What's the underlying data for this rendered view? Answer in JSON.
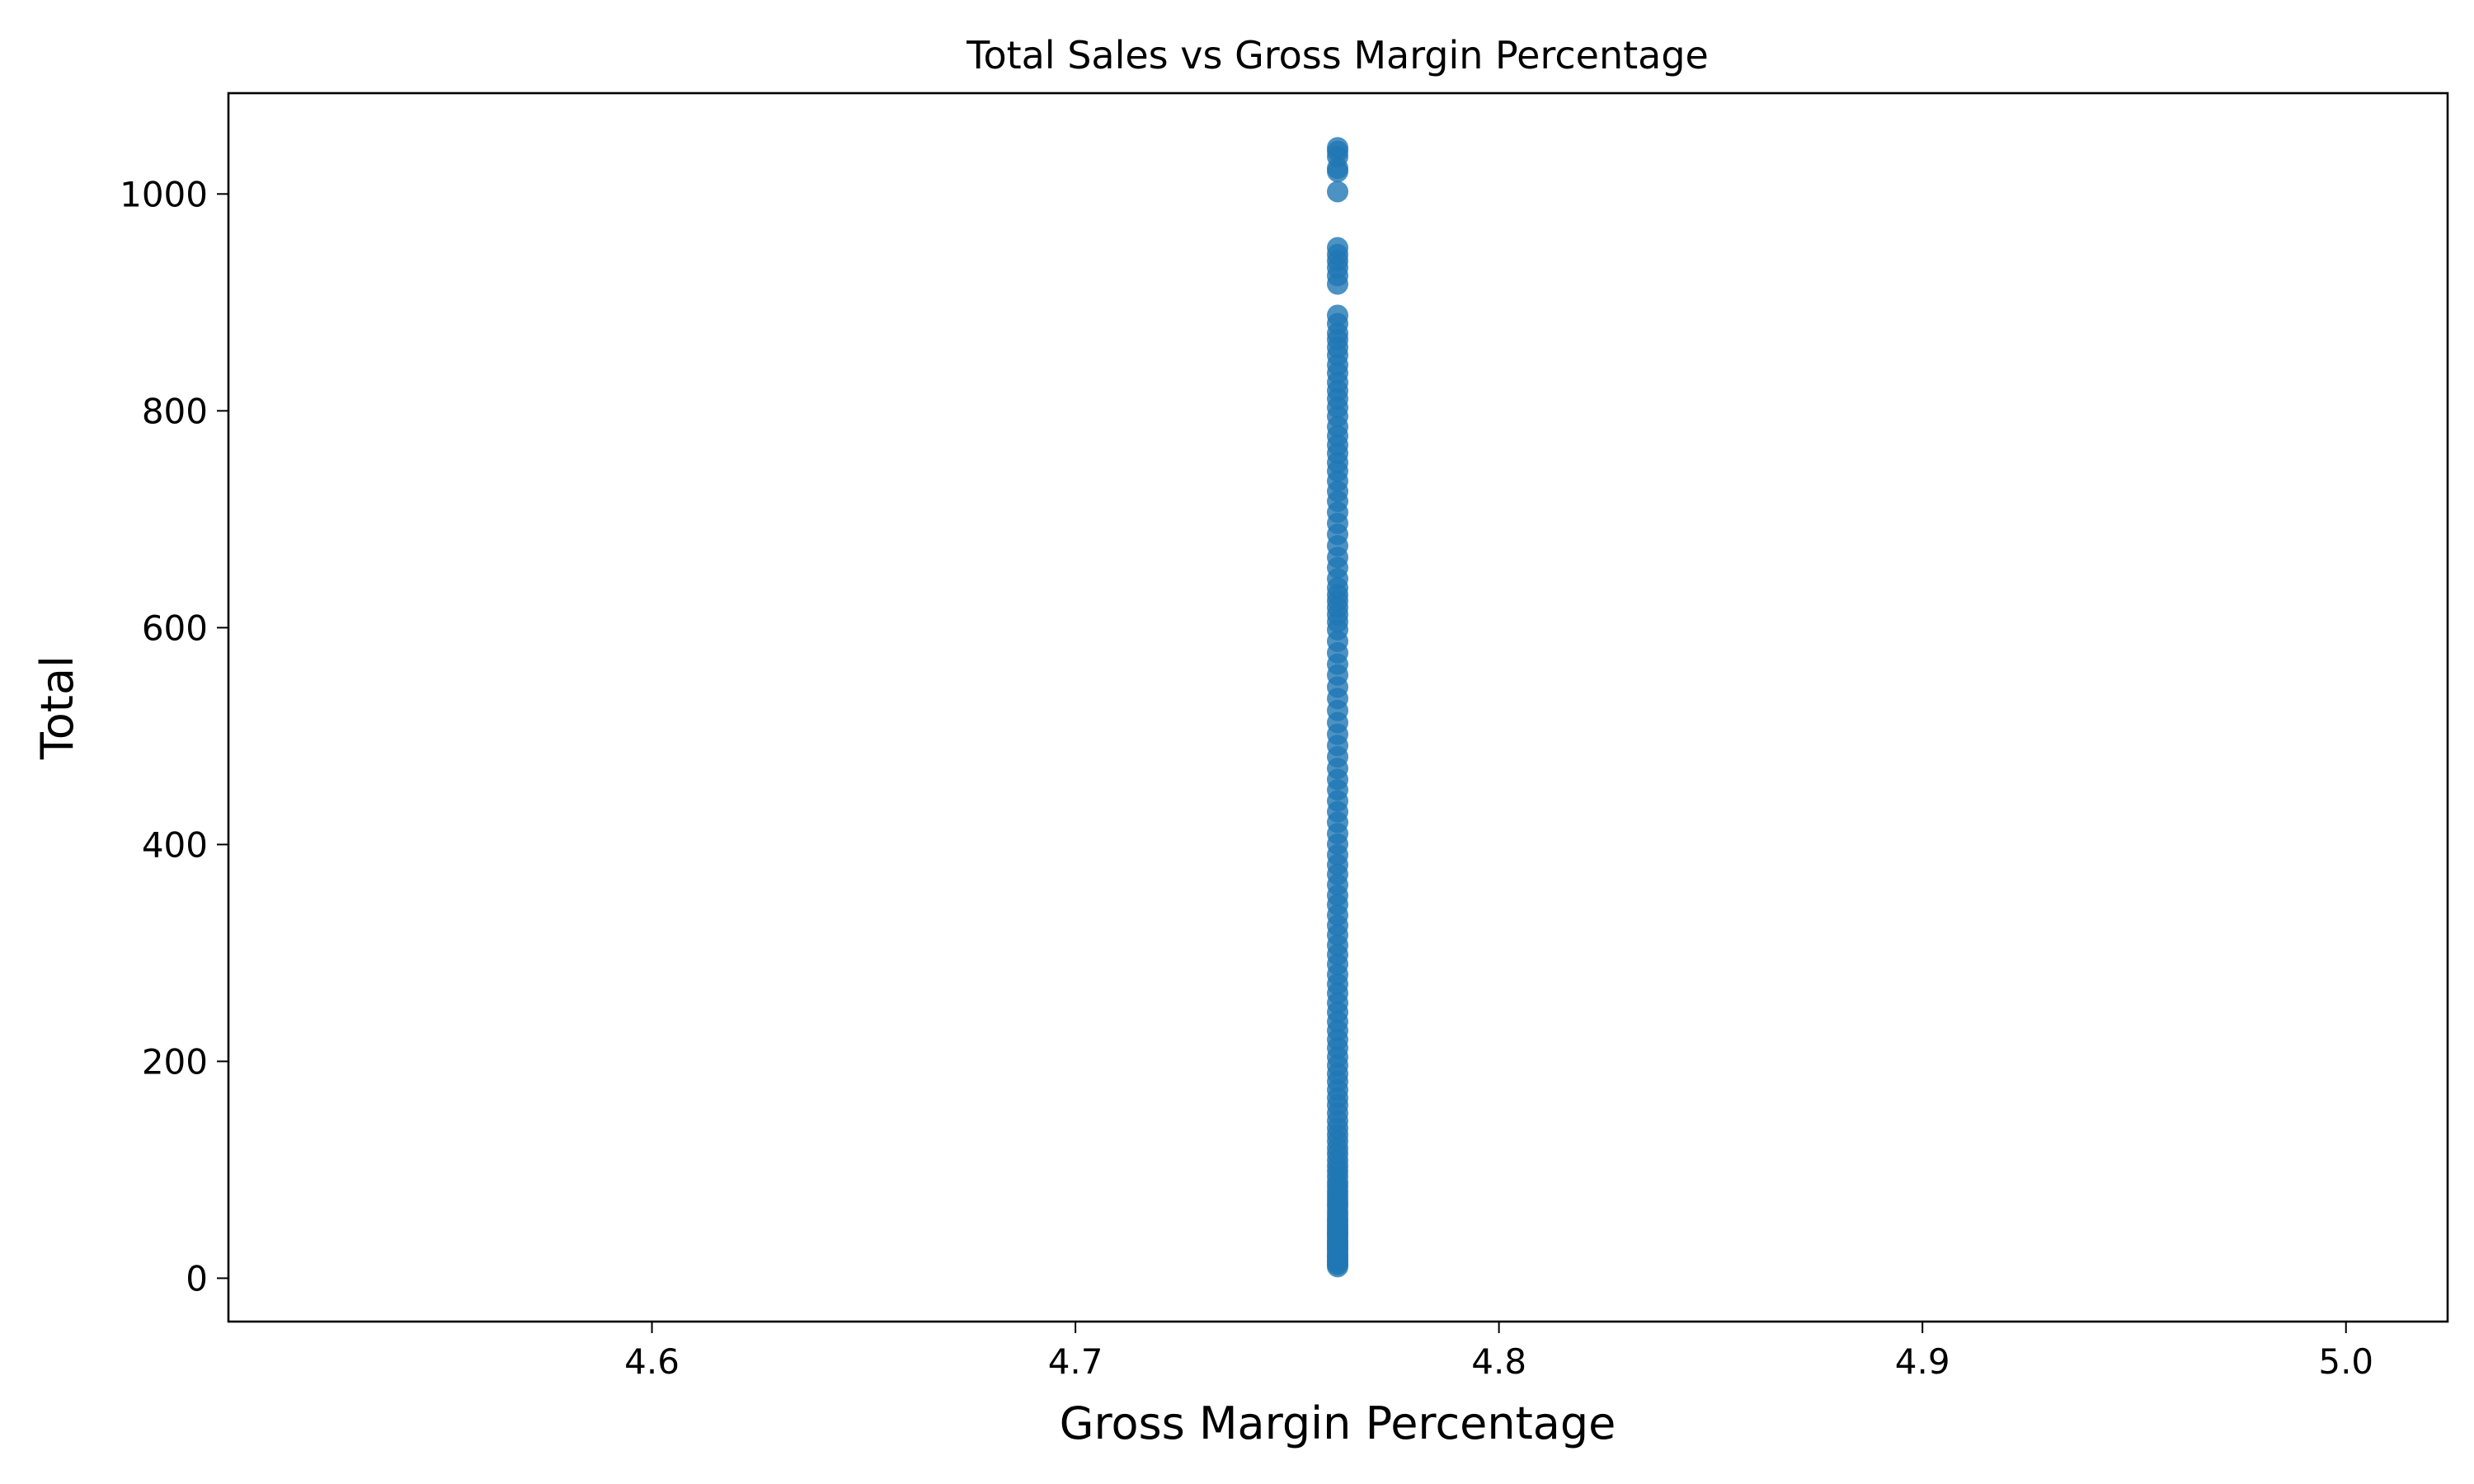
{
  "chart_data": {
    "type": "scatter",
    "title": "Total Sales vs Gross Margin Percentage",
    "xlabel": "Gross Margin Percentage",
    "ylabel": "Total",
    "xlim": [
      4.5,
      5.024
    ],
    "ylim": [
      -40,
      1093
    ],
    "xticks": [
      4.6,
      4.7,
      4.8,
      4.9,
      5.0
    ],
    "xtick_labels": [
      "4.6",
      "4.7",
      "4.8",
      "4.9",
      "5.0"
    ],
    "yticks": [
      0,
      200,
      400,
      600,
      800,
      1000
    ],
    "ytick_labels": [
      "0",
      "200",
      "400",
      "600",
      "800",
      "1000"
    ],
    "grid": false,
    "legend": "none",
    "marker_color": "#1f77b4",
    "marker_alpha": 0.8,
    "series": [
      {
        "x_constant": 4.761905,
        "y": [
          10.68,
          12.69,
          14.68,
          16.11,
          18.64,
          20.7,
          22.62,
          25.29,
          27.3,
          29.42,
          31.45,
          33.43,
          35.2,
          38.3,
          40.26,
          42.36,
          44.56,
          47.25,
          49.47,
          52.5,
          55.07,
          58.59,
          62.06,
          66.16,
          69.11,
          72.62,
          76.58,
          80.22,
          84.63,
          88.45,
          93.74,
          98.71,
          103.62,
          108.86,
          114.65,
          120.09,
          126.42,
          132.35,
          138.46,
          145.22,
          152.25,
          159.64,
          166.34,
          173.7,
          181.44,
          188.52,
          196.25,
          204.05,
          212.37,
          220.1,
          228.44,
          236.66,
          245.38,
          253.87,
          262.79,
          271.32,
          280.06,
          289.52,
          298.37,
          307.14,
          316.53,
          325.44,
          334.82,
          344.45,
          353.12,
          362.88,
          372.46,
          381.32,
          390.47,
          400.31,
          410.06,
          420.51,
          430.26,
          440.18,
          450.42,
          460.05,
          470.18,
          480.88,
          491.35,
          501.66,
          512.44,
          523.67,
          534.72,
          545.23,
          556.36,
          566.29,
          576.81,
          587.46,
          598.1,
          605.42,
          612.15,
          618.56,
          624.67,
          630.28,
          636.73,
          645.12,
          655.34,
          664.83,
          675.58,
          686.05,
          696.3,
          706.45,
          716.65,
          725.76,
          735.21,
          744.38,
          752.25,
          760.71,
          768.49,
          776.91,
          785.34,
          794.87,
          803.05,
          811.19,
          818.63,
          826.23,
          834.8,
          842.37,
          851.28,
          858.49,
          865.72,
          871.51,
          880.41,
          888.12,
          916.94,
          924.72,
          932.12,
          938.37,
          944.13,
          950.4,
          1002.15,
          1020.71,
          1023.75,
          1034.46,
          1039.29,
          1042.65
        ]
      }
    ]
  }
}
